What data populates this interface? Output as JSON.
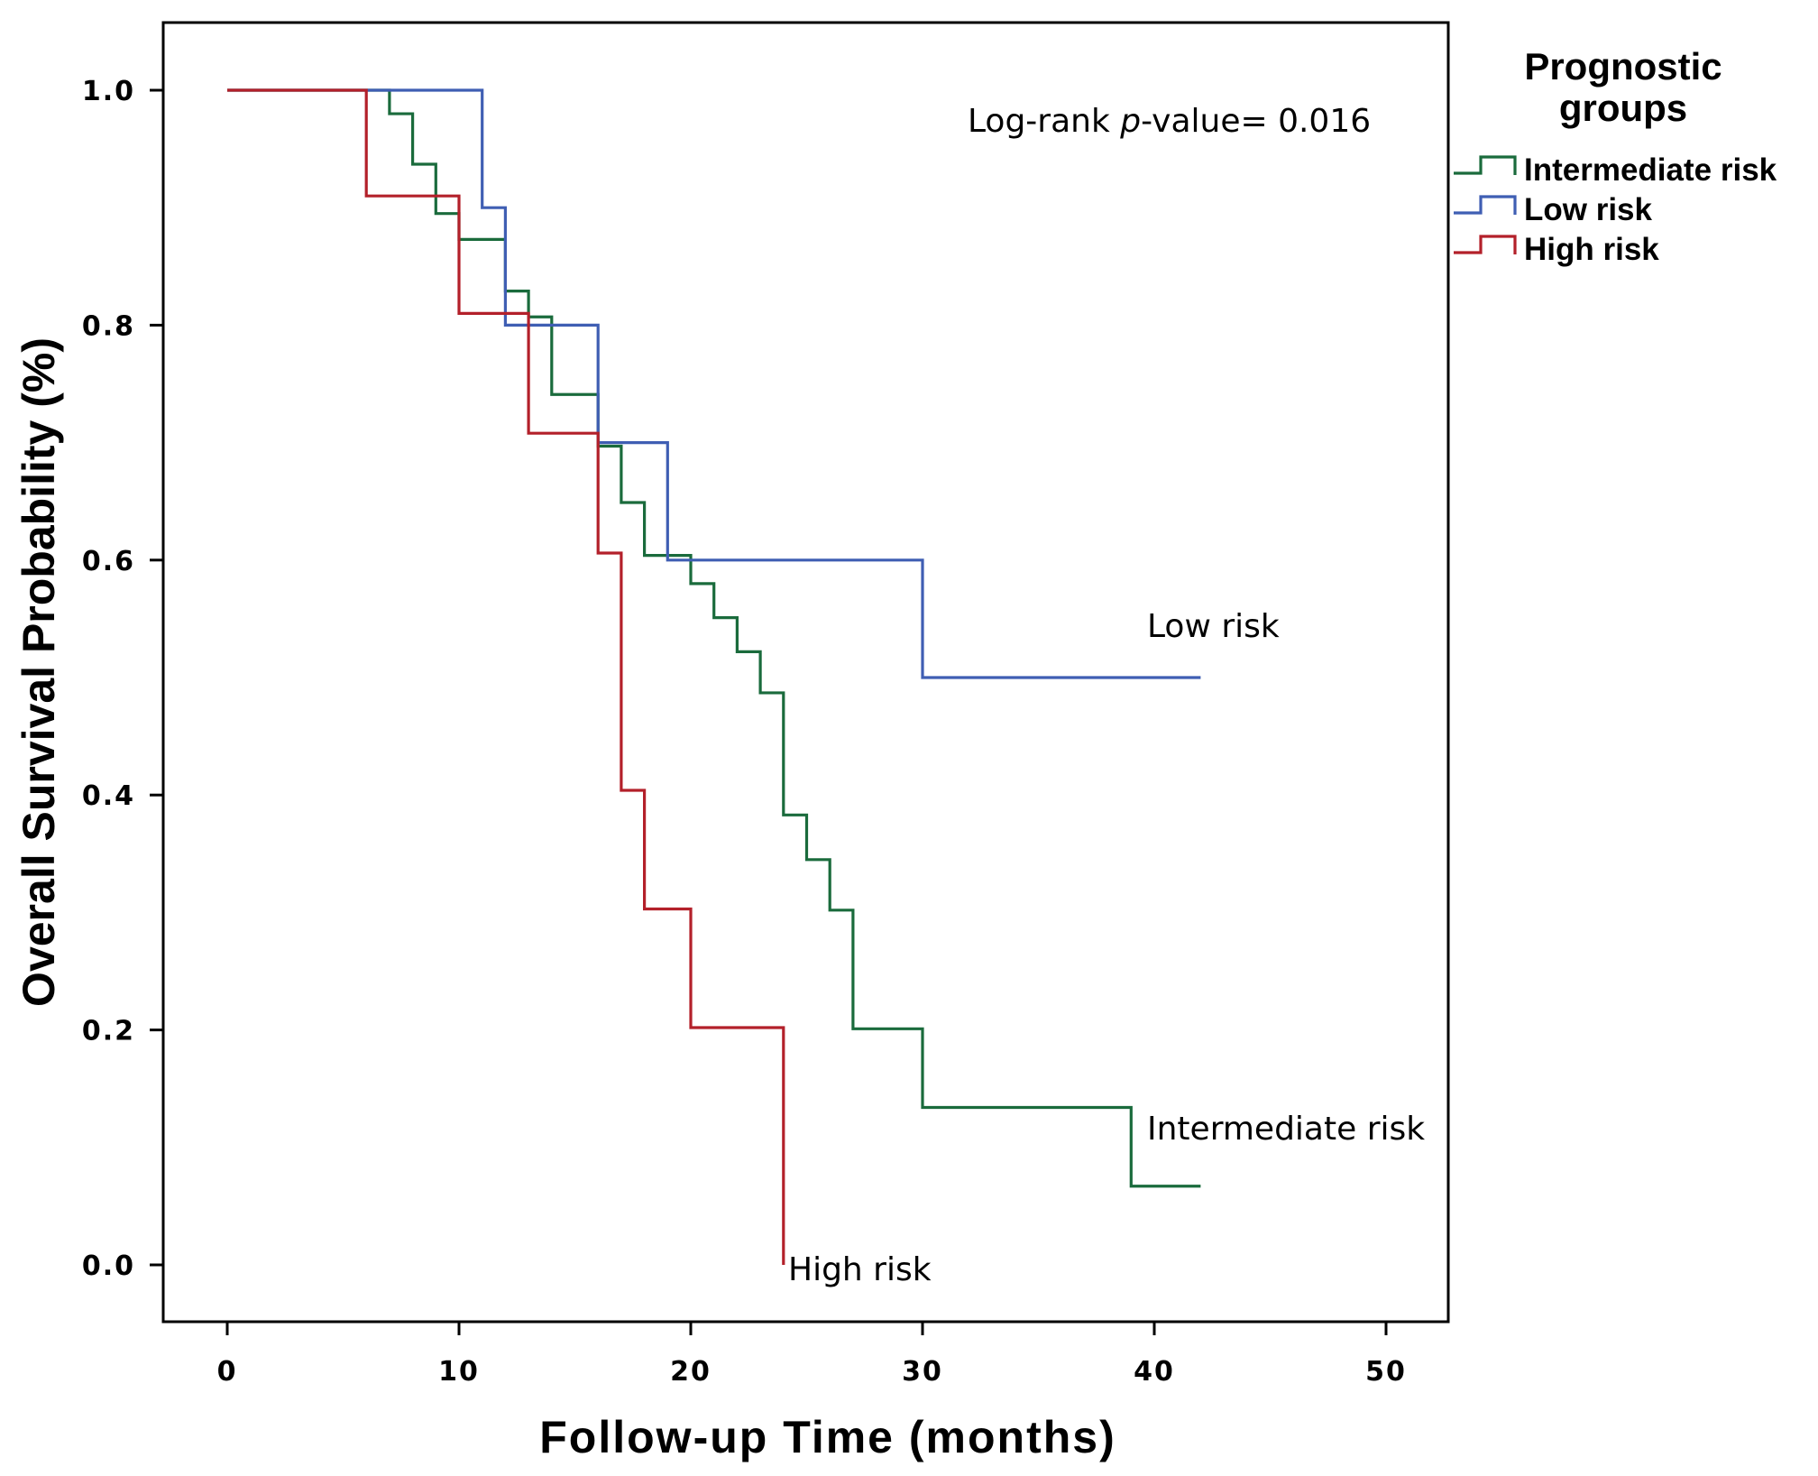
{
  "chart_data": {
    "type": "line",
    "subtype": "kaplan-meier-step",
    "title": "",
    "xlabel": "Follow-up Time (months)",
    "ylabel": "Overall Survival Probability (%)",
    "xlim": [
      0,
      50
    ],
    "ylim": [
      0,
      1
    ],
    "x_ticks": [
      "0",
      "10",
      "20",
      "30",
      "40",
      "50"
    ],
    "y_ticks": [
      "0.0",
      "0.2",
      "0.4",
      "0.6",
      "0.8",
      "1.0"
    ],
    "legend": {
      "title_line1": "Prognostic",
      "title_line2": "groups",
      "placement": "right-outside"
    },
    "series": [
      {
        "name": "Intermediate risk",
        "color": "#1a6b3c",
        "x": [
          0,
          7,
          8,
          9,
          10,
          12,
          13,
          14,
          16,
          17,
          18,
          20,
          21,
          22,
          23,
          24,
          25,
          26,
          27,
          30,
          39,
          42
        ],
        "values": [
          1.0,
          0.98,
          0.937,
          0.895,
          0.873,
          0.829,
          0.807,
          0.741,
          0.697,
          0.649,
          0.604,
          0.58,
          0.551,
          0.522,
          0.487,
          0.383,
          0.345,
          0.302,
          0.201,
          0.134,
          0.067,
          0.067
        ],
        "end_label": "Intermediate risk"
      },
      {
        "name": "Low risk",
        "color": "#3f5eb3",
        "x": [
          0,
          11,
          12,
          16,
          19,
          30,
          42
        ],
        "values": [
          1.0,
          0.9,
          0.8,
          0.7,
          0.6,
          0.5,
          0.5
        ],
        "end_label": "Low risk"
      },
      {
        "name": "High risk",
        "color": "#b3202a",
        "x": [
          0,
          6,
          10,
          13,
          16,
          17,
          18,
          20,
          24
        ],
        "values": [
          1.0,
          0.91,
          0.81,
          0.708,
          0.606,
          0.404,
          0.303,
          0.202,
          0.0
        ],
        "end_label": "High risk"
      }
    ],
    "annotations": {
      "pvalue_prefix": "Log-rank ",
      "pvalue_italic": "p",
      "pvalue_suffix": "-value= 0.016"
    }
  }
}
